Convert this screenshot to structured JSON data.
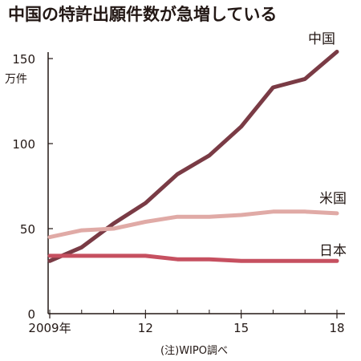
{
  "chart_data": {
    "type": "line",
    "title": "中国の特許出願件数が急増している",
    "y_unit": "万件",
    "note": "(注)WIPO調べ",
    "x": [
      2009,
      2010,
      2011,
      2012,
      2013,
      2014,
      2015,
      2016,
      2017,
      2018
    ],
    "x_ticks": [
      {
        "value": 2009,
        "label": "2009年"
      },
      {
        "value": 2012,
        "label": "12"
      },
      {
        "value": 2015,
        "label": "15"
      },
      {
        "value": 2018,
        "label": "18"
      }
    ],
    "y_ticks": [
      {
        "value": 0,
        "label": "0"
      },
      {
        "value": 50,
        "label": "50"
      },
      {
        "value": 100,
        "label": "100"
      },
      {
        "value": 150,
        "label": "150"
      }
    ],
    "xlim": [
      2009,
      2018
    ],
    "ylim": [
      0,
      150
    ],
    "grid": false,
    "series": [
      {
        "name": "中国",
        "color": "#7a3b45",
        "values": [
          31,
          39,
          53,
          65,
          82,
          93,
          110,
          133,
          138,
          154
        ]
      },
      {
        "name": "米国",
        "color": "#e0aaa6",
        "values": [
          45,
          49,
          50,
          54,
          57,
          57,
          58,
          60,
          60,
          59
        ]
      },
      {
        "name": "日本",
        "color": "#c65060",
        "values": [
          34,
          34,
          34,
          34,
          32,
          32,
          31,
          31,
          31,
          31
        ]
      }
    ]
  }
}
